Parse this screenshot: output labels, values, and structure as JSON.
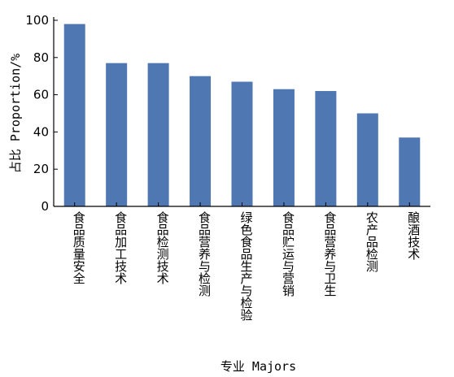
{
  "chart_data": {
    "type": "bar",
    "title": "",
    "xlabel": "专业 Majors",
    "ylabel": "占比 Proportion/%",
    "ylim": [
      0,
      100
    ],
    "yticks": [
      0,
      20,
      40,
      60,
      80,
      100
    ],
    "grid": false,
    "bar_color": "#4f78b3",
    "categories": [
      "食品质量安全",
      "食品加工技术",
      "食品检测技术",
      "食品营养与检测",
      "绿色食品生产与检验",
      "食品贮运与营销",
      "食品营养与卫生",
      "农产品检测",
      "酿酒技术"
    ],
    "values": [
      98,
      77,
      77,
      70,
      67,
      63,
      62,
      50,
      37
    ]
  }
}
